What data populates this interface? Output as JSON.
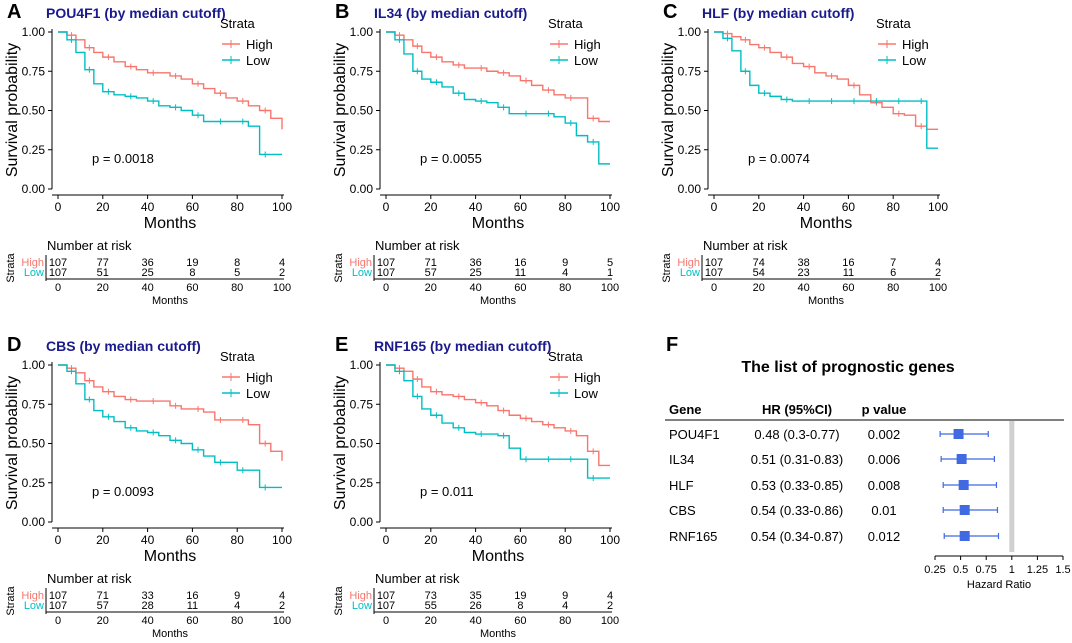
{
  "colors": {
    "high": "#F8766D",
    "low": "#00BFC4",
    "title": "#1a1a8c",
    "forest_box": "#4169E1",
    "refline": "#d0d0d0"
  },
  "chart_data": [
    {
      "panel": "A",
      "type": "line",
      "subtitle": "POU4F1 (by median cutoff)",
      "xlabel": "Months",
      "ylabel": "Survival probability",
      "xlim": [
        0,
        100
      ],
      "ylim": [
        0,
        1
      ],
      "xticks": [
        "0",
        "20",
        "40",
        "60",
        "80",
        "100"
      ],
      "yticks": [
        "0.00",
        "0.25",
        "0.50",
        "0.75",
        "1.00"
      ],
      "legend_title": "Strata",
      "p_value": "p = 0.0018",
      "series": [
        {
          "name": "High",
          "x": [
            0,
            4,
            8,
            12,
            16,
            20,
            25,
            30,
            35,
            40,
            45,
            50,
            55,
            60,
            65,
            70,
            75,
            80,
            85,
            90,
            95,
            100
          ],
          "y": [
            1.0,
            0.98,
            0.95,
            0.9,
            0.87,
            0.84,
            0.81,
            0.78,
            0.76,
            0.74,
            0.74,
            0.72,
            0.7,
            0.67,
            0.64,
            0.61,
            0.58,
            0.56,
            0.53,
            0.5,
            0.45,
            0.38
          ]
        },
        {
          "name": "Low",
          "x": [
            0,
            4,
            8,
            12,
            16,
            20,
            25,
            30,
            35,
            40,
            45,
            50,
            55,
            60,
            65,
            70,
            75,
            80,
            85,
            90,
            95,
            100
          ],
          "y": [
            1.0,
            0.95,
            0.87,
            0.76,
            0.67,
            0.62,
            0.6,
            0.59,
            0.58,
            0.56,
            0.53,
            0.52,
            0.5,
            0.47,
            0.43,
            0.43,
            0.43,
            0.43,
            0.4,
            0.22,
            0.22,
            0.22
          ]
        }
      ],
      "risk_table": {
        "header": "Number at risk",
        "strata_label": "Strata",
        "xlabel": "Months",
        "x": [
          "0",
          "20",
          "40",
          "60",
          "80",
          "100"
        ],
        "rows": [
          {
            "name": "High",
            "values": [
              "107",
              "77",
              "36",
              "19",
              "8",
              "4"
            ]
          },
          {
            "name": "Low",
            "values": [
              "107",
              "51",
              "25",
              "8",
              "5",
              "2"
            ]
          }
        ]
      }
    },
    {
      "panel": "B",
      "type": "line",
      "subtitle": "IL34 (by median cutoff)",
      "xlabel": "Months",
      "ylabel": "Survival probability",
      "xlim": [
        0,
        100
      ],
      "ylim": [
        0,
        1
      ],
      "xticks": [
        "0",
        "20",
        "40",
        "60",
        "80",
        "100"
      ],
      "yticks": [
        "0.00",
        "0.25",
        "0.50",
        "0.75",
        "1.00"
      ],
      "legend_title": "Strata",
      "p_value": "p = 0.0055",
      "series": [
        {
          "name": "High",
          "x": [
            0,
            4,
            8,
            12,
            16,
            20,
            25,
            30,
            35,
            40,
            45,
            50,
            55,
            60,
            65,
            70,
            75,
            80,
            85,
            90,
            95,
            100
          ],
          "y": [
            1.0,
            0.98,
            0.95,
            0.91,
            0.87,
            0.84,
            0.81,
            0.79,
            0.77,
            0.77,
            0.75,
            0.74,
            0.72,
            0.69,
            0.66,
            0.63,
            0.6,
            0.58,
            0.58,
            0.45,
            0.43,
            0.43
          ]
        },
        {
          "name": "Low",
          "x": [
            0,
            4,
            8,
            12,
            16,
            20,
            25,
            30,
            35,
            40,
            45,
            50,
            55,
            60,
            65,
            70,
            75,
            80,
            85,
            90,
            95,
            100
          ],
          "y": [
            1.0,
            0.95,
            0.86,
            0.75,
            0.7,
            0.68,
            0.65,
            0.61,
            0.57,
            0.56,
            0.55,
            0.52,
            0.48,
            0.48,
            0.48,
            0.48,
            0.46,
            0.42,
            0.34,
            0.3,
            0.16,
            0.16
          ]
        }
      ],
      "risk_table": {
        "header": "Number at risk",
        "strata_label": "Strata",
        "xlabel": "Months",
        "x": [
          "0",
          "20",
          "40",
          "60",
          "80",
          "100"
        ],
        "rows": [
          {
            "name": "High",
            "values": [
              "107",
              "71",
              "36",
              "16",
              "9",
              "5"
            ]
          },
          {
            "name": "Low",
            "values": [
              "107",
              "57",
              "25",
              "11",
              "4",
              "1"
            ]
          }
        ]
      }
    },
    {
      "panel": "C",
      "type": "line",
      "subtitle": "HLF (by median cutoff)",
      "xlabel": "Months",
      "ylabel": "Survival probability",
      "xlim": [
        0,
        100
      ],
      "ylim": [
        0,
        1
      ],
      "xticks": [
        "0",
        "20",
        "40",
        "60",
        "80",
        "100"
      ],
      "yticks": [
        "0.00",
        "0.25",
        "0.50",
        "0.75",
        "1.00"
      ],
      "legend_title": "Strata",
      "p_value": "p = 0.0074",
      "series": [
        {
          "name": "High",
          "x": [
            0,
            4,
            8,
            12,
            16,
            20,
            25,
            30,
            35,
            40,
            45,
            50,
            55,
            60,
            65,
            70,
            75,
            80,
            85,
            90,
            95,
            100
          ],
          "y": [
            1.0,
            0.99,
            0.97,
            0.95,
            0.92,
            0.9,
            0.87,
            0.84,
            0.8,
            0.78,
            0.74,
            0.72,
            0.7,
            0.66,
            0.6,
            0.55,
            0.52,
            0.48,
            0.47,
            0.4,
            0.38,
            0.38
          ]
        },
        {
          "name": "Low",
          "x": [
            0,
            4,
            8,
            12,
            16,
            20,
            25,
            30,
            35,
            40,
            45,
            50,
            55,
            60,
            65,
            70,
            75,
            80,
            85,
            90,
            95,
            100
          ],
          "y": [
            1.0,
            0.96,
            0.88,
            0.75,
            0.66,
            0.61,
            0.59,
            0.57,
            0.56,
            0.56,
            0.56,
            0.56,
            0.56,
            0.56,
            0.56,
            0.56,
            0.56,
            0.56,
            0.56,
            0.56,
            0.26,
            0.26
          ]
        }
      ],
      "risk_table": {
        "header": "Number at risk",
        "strata_label": "Strata",
        "xlabel": "Months",
        "x": [
          "0",
          "20",
          "40",
          "60",
          "80",
          "100"
        ],
        "rows": [
          {
            "name": "High",
            "values": [
              "107",
              "74",
              "38",
              "16",
              "7",
              "4"
            ]
          },
          {
            "name": "Low",
            "values": [
              "107",
              "54",
              "23",
              "11",
              "6",
              "2"
            ]
          }
        ]
      }
    },
    {
      "panel": "D",
      "type": "line",
      "subtitle": "CBS (by median cutoff)",
      "xlabel": "Months",
      "ylabel": "Survival probability",
      "xlim": [
        0,
        100
      ],
      "ylim": [
        0,
        1
      ],
      "xticks": [
        "0",
        "20",
        "40",
        "60",
        "80",
        "100"
      ],
      "yticks": [
        "0.00",
        "0.25",
        "0.50",
        "0.75",
        "1.00"
      ],
      "legend_title": "Strata",
      "p_value": "p = 0.0093",
      "series": [
        {
          "name": "High",
          "x": [
            0,
            4,
            8,
            12,
            16,
            20,
            25,
            30,
            35,
            40,
            45,
            50,
            55,
            60,
            65,
            70,
            75,
            80,
            85,
            90,
            95,
            100
          ],
          "y": [
            1.0,
            0.98,
            0.95,
            0.9,
            0.86,
            0.83,
            0.8,
            0.78,
            0.77,
            0.77,
            0.77,
            0.74,
            0.72,
            0.72,
            0.7,
            0.65,
            0.65,
            0.65,
            0.62,
            0.5,
            0.45,
            0.39
          ]
        },
        {
          "name": "Low",
          "x": [
            0,
            4,
            8,
            12,
            16,
            20,
            25,
            30,
            35,
            40,
            45,
            50,
            55,
            60,
            65,
            70,
            75,
            80,
            85,
            90,
            95,
            100
          ],
          "y": [
            1.0,
            0.96,
            0.88,
            0.78,
            0.71,
            0.67,
            0.64,
            0.6,
            0.58,
            0.57,
            0.55,
            0.52,
            0.5,
            0.46,
            0.42,
            0.38,
            0.38,
            0.33,
            0.33,
            0.22,
            0.22,
            0.22
          ]
        }
      ],
      "risk_table": {
        "header": "Number at risk",
        "strata_label": "Strata",
        "xlabel": "Months",
        "x": [
          "0",
          "20",
          "40",
          "60",
          "80",
          "100"
        ],
        "rows": [
          {
            "name": "High",
            "values": [
              "107",
              "71",
              "33",
              "16",
              "9",
              "4"
            ]
          },
          {
            "name": "Low",
            "values": [
              "107",
              "57",
              "28",
              "11",
              "4",
              "2"
            ]
          }
        ]
      }
    },
    {
      "panel": "E",
      "type": "line",
      "subtitle": "RNF165 (by median cutoff)",
      "xlabel": "Months",
      "ylabel": "Survival probability",
      "xlim": [
        0,
        100
      ],
      "ylim": [
        0,
        1
      ],
      "xticks": [
        "0",
        "20",
        "40",
        "60",
        "80",
        "100"
      ],
      "yticks": [
        "0.00",
        "0.25",
        "0.50",
        "0.75",
        "1.00"
      ],
      "legend_title": "Strata",
      "p_value": "p = 0.011",
      "series": [
        {
          "name": "High",
          "x": [
            0,
            4,
            8,
            12,
            16,
            20,
            25,
            30,
            35,
            40,
            45,
            50,
            55,
            60,
            65,
            70,
            75,
            80,
            85,
            90,
            95,
            100
          ],
          "y": [
            1.0,
            0.98,
            0.96,
            0.91,
            0.86,
            0.83,
            0.81,
            0.8,
            0.78,
            0.76,
            0.74,
            0.71,
            0.68,
            0.66,
            0.64,
            0.62,
            0.6,
            0.58,
            0.55,
            0.45,
            0.36,
            0.36
          ]
        },
        {
          "name": "Low",
          "x": [
            0,
            4,
            8,
            12,
            16,
            20,
            25,
            30,
            35,
            40,
            45,
            50,
            55,
            60,
            65,
            70,
            75,
            80,
            85,
            90,
            95,
            100
          ],
          "y": [
            1.0,
            0.96,
            0.9,
            0.8,
            0.72,
            0.68,
            0.63,
            0.6,
            0.57,
            0.56,
            0.56,
            0.55,
            0.47,
            0.4,
            0.4,
            0.4,
            0.4,
            0.4,
            0.4,
            0.28,
            0.28,
            0.28
          ]
        }
      ],
      "risk_table": {
        "header": "Number at risk",
        "strata_label": "Strata",
        "xlabel": "Months",
        "x": [
          "0",
          "20",
          "40",
          "60",
          "80",
          "100"
        ],
        "rows": [
          {
            "name": "High",
            "values": [
              "107",
              "73",
              "35",
              "19",
              "9",
              "4"
            ]
          },
          {
            "name": "Low",
            "values": [
              "107",
              "55",
              "26",
              "8",
              "4",
              "2"
            ]
          }
        ]
      }
    },
    {
      "panel": "F",
      "type": "forest",
      "title": "The list of prognostic genes",
      "columns": [
        "Gene",
        "HR (95%CI)",
        "p value"
      ],
      "rows": [
        {
          "gene": "POU4F1",
          "hr_text": "0.48 (0.3-0.77)",
          "p": "0.002",
          "hr": 0.48,
          "lo": 0.3,
          "hi": 0.77
        },
        {
          "gene": "IL34",
          "hr_text": "0.51 (0.31-0.83)",
          "p": "0.006",
          "hr": 0.51,
          "lo": 0.31,
          "hi": 0.83
        },
        {
          "gene": "HLF",
          "hr_text": "0.53 (0.33-0.85)",
          "p": "0.008",
          "hr": 0.53,
          "lo": 0.33,
          "hi": 0.85
        },
        {
          "gene": "CBS",
          "hr_text": "0.54 (0.33-0.86)",
          "p": "0.01",
          "hr": 0.54,
          "lo": 0.33,
          "hi": 0.86
        },
        {
          "gene": "RNF165",
          "hr_text": "0.54 (0.34-0.87)",
          "p": "0.012",
          "hr": 0.54,
          "lo": 0.34,
          "hi": 0.87
        }
      ],
      "xticks": [
        "0.25",
        "0.5",
        "0.75",
        "1",
        "1.25",
        "1.5"
      ],
      "xtick_values": [
        0.25,
        0.5,
        0.75,
        1,
        1.25,
        1.5
      ],
      "xlim": [
        0.25,
        1.5
      ],
      "ref_value": 1,
      "xlabel": "Hazard Ratio"
    }
  ]
}
